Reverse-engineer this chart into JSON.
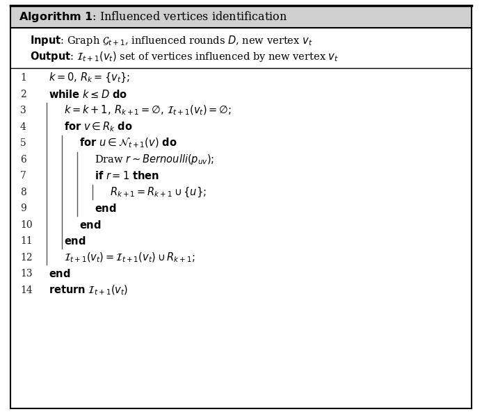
{
  "bg_color": "#ffffff",
  "border_color": "#000000",
  "header_bg": "#d8d8d8",
  "font_size": 10.5,
  "title_font_size": 11.5,
  "figsize": [
    6.93,
    5.96
  ],
  "dpi": 100
}
